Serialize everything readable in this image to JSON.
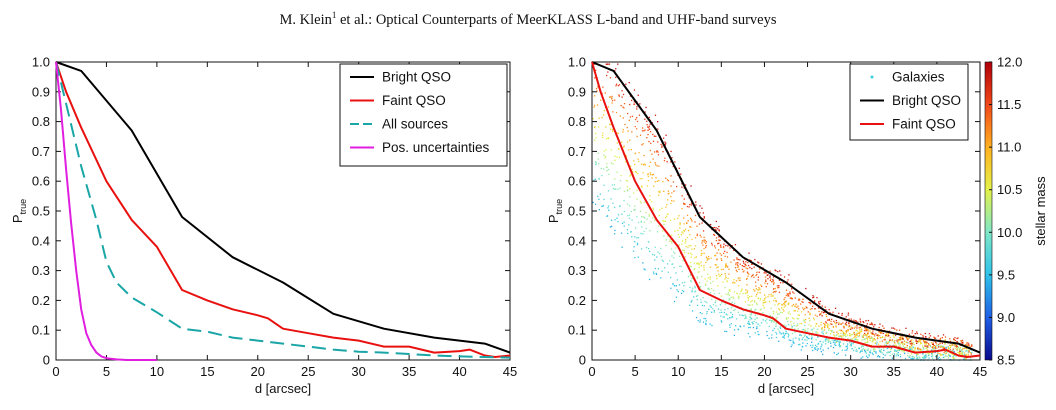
{
  "header": {
    "author": "M. Klein",
    "affiliation_mark": "1",
    "rest": " et al.: Optical Counterparts of MeerKLASS L-band and UHF-band surveys"
  },
  "chart_data": [
    {
      "type": "line",
      "xlabel": "d [arcsec]",
      "ylabel": "P",
      "ylabel_sub": "true",
      "xlim": [
        0,
        45
      ],
      "ylim": [
        0,
        1.0
      ],
      "xticks": [
        0,
        5,
        10,
        15,
        20,
        25,
        30,
        35,
        40,
        45
      ],
      "yticks": [
        0,
        0.1,
        0.2,
        0.3,
        0.4,
        0.5,
        0.6,
        0.7,
        0.8,
        0.9,
        1.0
      ],
      "legend_position": "top-right",
      "series": [
        {
          "name": "Bright QSO",
          "color": "#000000",
          "dash": "solid",
          "x": [
            0,
            2.5,
            7.5,
            12.5,
            17.5,
            22.5,
            27.5,
            32.5,
            37.5,
            42.5,
            45
          ],
          "y": [
            1.0,
            0.97,
            0.77,
            0.48,
            0.345,
            0.26,
            0.155,
            0.105,
            0.075,
            0.055,
            0.025
          ]
        },
        {
          "name": "Faint QSO",
          "color": "#e8110f",
          "dash": "solid",
          "x": [
            0,
            1,
            2.5,
            5,
            7.5,
            10,
            12.5,
            15,
            17.5,
            20,
            21,
            22.5,
            25,
            27.5,
            30,
            32.5,
            35,
            37.5,
            40,
            41,
            42.5,
            43.5,
            45
          ],
          "y": [
            1.0,
            0.9,
            0.78,
            0.6,
            0.47,
            0.38,
            0.235,
            0.2,
            0.17,
            0.15,
            0.14,
            0.105,
            0.09,
            0.075,
            0.065,
            0.045,
            0.045,
            0.025,
            0.03,
            0.035,
            0.015,
            0.01,
            0.015
          ]
        },
        {
          "name": "All sources",
          "color": "#1aa6a6",
          "dash": "dashed",
          "x": [
            0,
            1,
            2.5,
            4,
            5,
            6,
            7.5,
            10,
            12.5,
            15,
            17.5,
            20,
            22.5,
            25,
            27.5,
            30,
            32.5,
            35,
            37.5,
            40,
            42.5,
            45
          ],
          "y": [
            1.0,
            0.86,
            0.65,
            0.47,
            0.33,
            0.26,
            0.21,
            0.16,
            0.105,
            0.095,
            0.075,
            0.065,
            0.055,
            0.045,
            0.035,
            0.028,
            0.025,
            0.02,
            0.015,
            0.012,
            0.01,
            0.008
          ]
        },
        {
          "name": "Pos. uncertainties",
          "color": "#e01ee0",
          "dash": "solid",
          "x": [
            0,
            0.5,
            1,
            1.5,
            2,
            2.5,
            3,
            3.5,
            4,
            4.5,
            5,
            6,
            7,
            8,
            10
          ],
          "y": [
            1.0,
            0.84,
            0.64,
            0.46,
            0.3,
            0.17,
            0.09,
            0.05,
            0.025,
            0.012,
            0.006,
            0.002,
            0.0,
            0.0,
            0.0
          ]
        }
      ]
    },
    {
      "type": "scatter",
      "xlabel": "d [arcsec]",
      "ylabel": "P",
      "ylabel_sub": "true",
      "xlim": [
        0,
        45
      ],
      "ylim": [
        0,
        1.0
      ],
      "xticks": [
        0,
        5,
        10,
        15,
        20,
        25,
        30,
        35,
        40,
        45
      ],
      "yticks": [
        0,
        0.1,
        0.2,
        0.3,
        0.4,
        0.5,
        0.6,
        0.7,
        0.8,
        0.9,
        1.0
      ],
      "legend_position": "top-right",
      "scatter_series": {
        "name": "Galaxies",
        "color": "#3ccfd6"
      },
      "colorbar": {
        "label": "stellar mass",
        "range": [
          8.5,
          12.0
        ],
        "ticks": [
          8.5,
          9.0,
          9.5,
          10.0,
          10.5,
          11.0,
          11.5,
          12.0
        ],
        "colormap": [
          "#0a0a8c",
          "#1f5fe6",
          "#2fc2e8",
          "#7fe7c8",
          "#e4f24a",
          "#ffb020",
          "#f2481a",
          "#b0000a"
        ]
      },
      "series": [
        {
          "name": "Bright QSO",
          "color": "#000000",
          "dash": "solid",
          "ref": 0
        },
        {
          "name": "Faint QSO",
          "color": "#e8110f",
          "dash": "solid",
          "ref": 1
        }
      ]
    }
  ]
}
